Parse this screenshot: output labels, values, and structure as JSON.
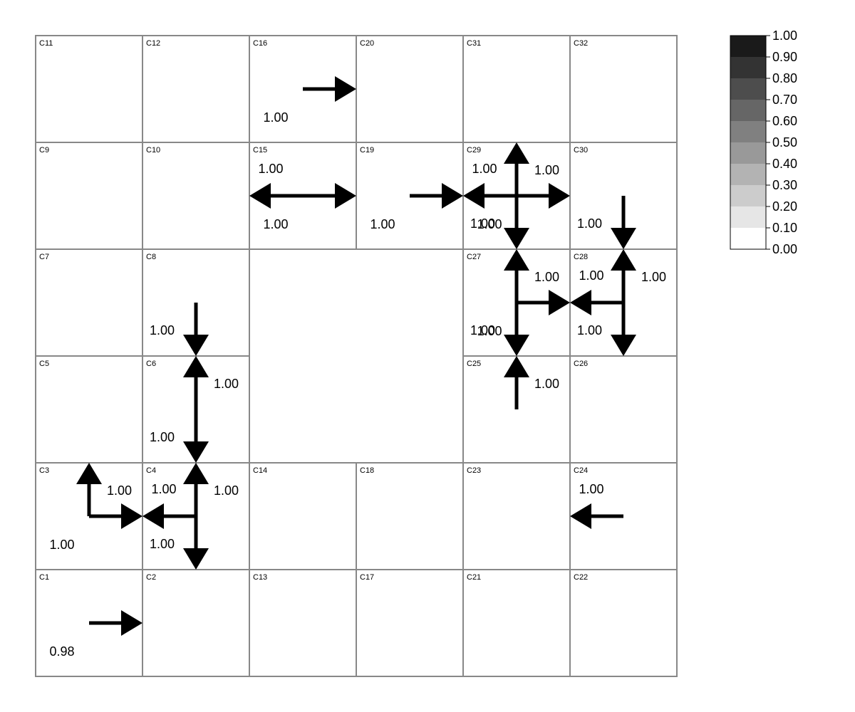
{
  "grid": {
    "rows": [
      [
        "C11",
        "C12",
        "C16",
        "C20",
        "C31",
        "C32"
      ],
      [
        "C9",
        "C10",
        "C15",
        "C19",
        "C29",
        "C30"
      ],
      [
        "C7",
        "C8",
        "",
        "",
        "C27",
        "C28"
      ],
      [
        "C5",
        "C6",
        "",
        "",
        "C25",
        "C26"
      ],
      [
        "C3",
        "C4",
        "C14",
        "C18",
        "C23",
        "C24"
      ],
      [
        "C1",
        "C2",
        "C13",
        "C17",
        "C21",
        "C22"
      ]
    ],
    "merged_void": {
      "from": "C8",
      "description": ""
    }
  },
  "arrows": [
    {
      "from_cell": "C16",
      "direction": "right",
      "value": "1.00"
    },
    {
      "from_cell": "C15",
      "direction": "left",
      "value": "1.00"
    },
    {
      "from_cell": "C15",
      "direction": "right",
      "value": "1.00"
    },
    {
      "from_cell": "C19",
      "direction": "right",
      "value": "1.00"
    },
    {
      "from_cell": "C29",
      "direction": "up",
      "value": "1.00"
    },
    {
      "from_cell": "C29",
      "direction": "left",
      "value": "1.00"
    },
    {
      "from_cell": "C29",
      "direction": "right",
      "value": "1.00"
    },
    {
      "from_cell": "C29",
      "direction": "down",
      "value": "1.00"
    },
    {
      "from_cell": "C30",
      "direction": "down",
      "value": "1.00"
    },
    {
      "from_cell": "C27",
      "direction": "up",
      "value": "1.00"
    },
    {
      "from_cell": "C27",
      "direction": "right",
      "value": "1.00"
    },
    {
      "from_cell": "C27",
      "direction": "down",
      "value": "1.00"
    },
    {
      "from_cell": "C28",
      "direction": "left",
      "value": "1.00"
    },
    {
      "from_cell": "C28",
      "direction": "up",
      "value": "1.00"
    },
    {
      "from_cell": "C28",
      "direction": "down",
      "value": "1.00"
    },
    {
      "from_cell": "C25",
      "direction": "up",
      "value": "1.00"
    },
    {
      "from_cell": "C8",
      "direction": "down",
      "value": "1.00"
    },
    {
      "from_cell": "C6",
      "direction": "up",
      "value": "1.00"
    },
    {
      "from_cell": "C6",
      "direction": "down",
      "value": "1.00"
    },
    {
      "from_cell": "C4",
      "direction": "up",
      "value": "1.00"
    },
    {
      "from_cell": "C4",
      "direction": "left",
      "value": "1.00"
    },
    {
      "from_cell": "C4",
      "direction": "down",
      "value": "1.00"
    },
    {
      "from_cell": "C3",
      "direction": "up",
      "value": "1.00"
    },
    {
      "from_cell": "C3",
      "direction": "right",
      "value": "1.00"
    },
    {
      "from_cell": "C24",
      "direction": "left",
      "value": "1.00"
    },
    {
      "from_cell": "C1",
      "direction": "right",
      "value": "0.98"
    }
  ],
  "legend": {
    "ticks": [
      "1.00",
      "0.90",
      "0.80",
      "0.70",
      "0.60",
      "0.50",
      "0.40",
      "0.30",
      "0.20",
      "0.10",
      "0.00"
    ],
    "colors": [
      "#1a1a1a",
      "#333333",
      "#4d4d4d",
      "#666666",
      "#808080",
      "#999999",
      "#b3b3b3",
      "#cccccc",
      "#e6e6e6",
      "#ffffff"
    ]
  },
  "colors": {
    "grid_line": "#888888",
    "arrow": "#000000"
  }
}
